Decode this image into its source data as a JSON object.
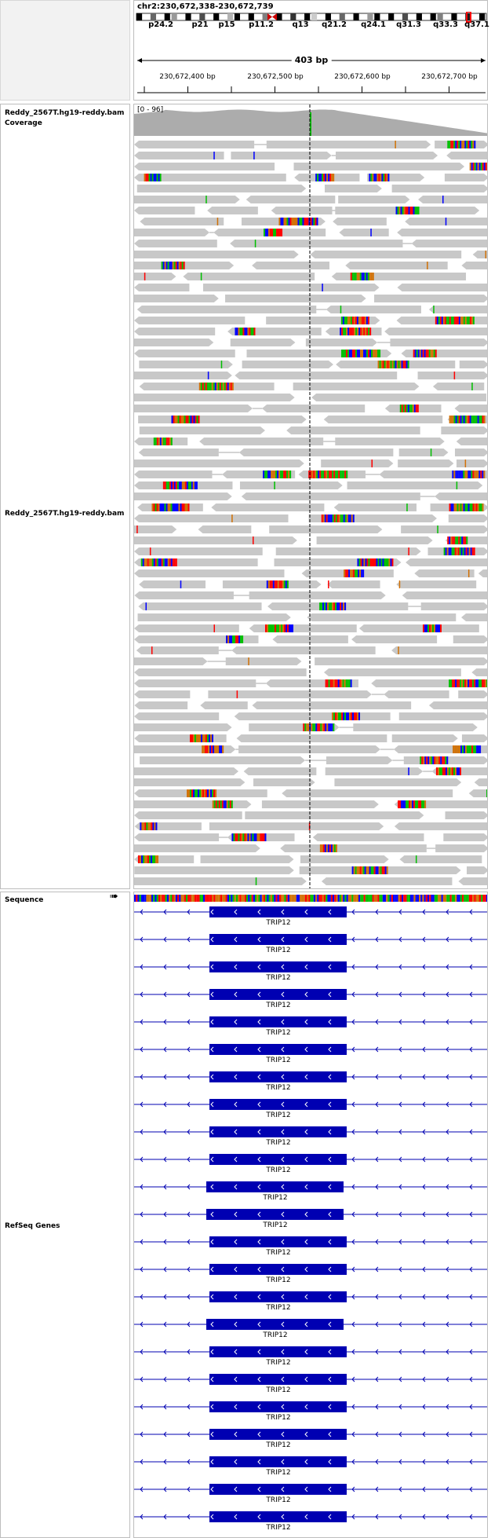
{
  "locus": "chr2:230,672,338-230,672,739",
  "span_label": "403 bp",
  "cytobands": [
    "p24.2",
    "p21",
    "p15",
    "p11.2",
    "q13",
    "q21.2",
    "q24.1",
    "q31.3",
    "q33.3",
    "q37.1"
  ],
  "ruler_ticks": [
    "230,672,400 bp",
    "230,672,500 bp",
    "230,672,600 bp",
    "230,672,700 bp"
  ],
  "tracks": {
    "coverage_name": "Reddy_2567T.hg19-reddy.bam Coverage",
    "coverage_scale": "[0 - 96]",
    "alignment_name": "Reddy_2567T.hg19-reddy.bam",
    "sequence_name": "Sequence",
    "refseq_name": "RefSeq Genes"
  },
  "gene_name": "TRIP12",
  "gene_rows": 24,
  "colors": {
    "read": "#c8c8c8",
    "read_edge": "#b4b4b4",
    "coverage": "#acacac",
    "gene": "#0000b2",
    "center_line": "#000000",
    "mismatch_a": "#00c000",
    "mismatch_c": "#0000ff",
    "mismatch_g": "#d17105",
    "mismatch_t": "#ff0000"
  }
}
